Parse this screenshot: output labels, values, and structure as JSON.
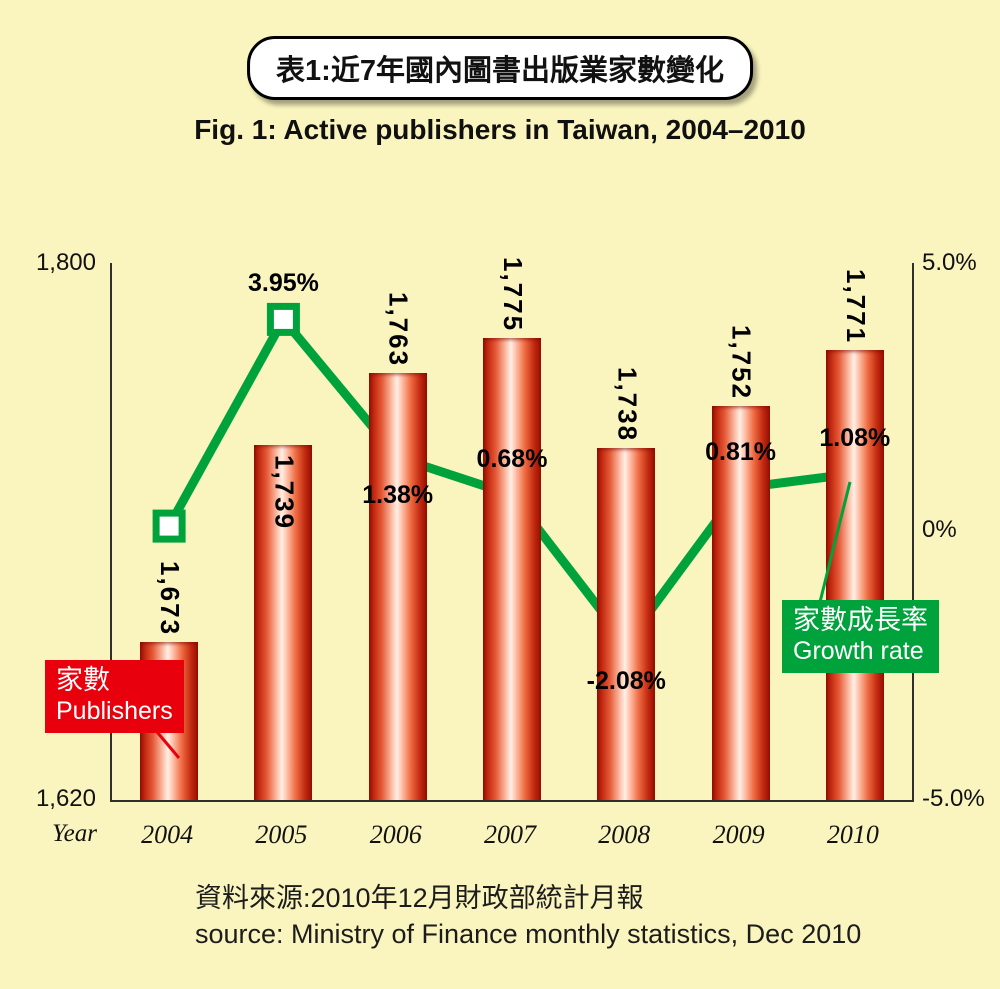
{
  "header": {
    "title_zh": "表1:近7年國內圖書出版業家數變化",
    "title_en": "Fig. 1: Active publishers in Taiwan, 2004–2010"
  },
  "chart_data": {
    "type": "bar+line",
    "categories": [
      "2004",
      "2005",
      "2006",
      "2007",
      "2008",
      "2009",
      "2010"
    ],
    "x_axis_label": "Year",
    "left_axis": {
      "min": 1620,
      "max": 1800,
      "label_top": "1,800",
      "label_bottom": "1,620"
    },
    "right_axis": {
      "min": -5,
      "max": 5,
      "label_top": "5.0%",
      "label_mid": "0%",
      "label_bottom": "-5.0%"
    },
    "series": [
      {
        "name": "家數 Publishers",
        "type": "bar",
        "color": "#C81A08",
        "values": [
          1673,
          1739,
          1763,
          1775,
          1738,
          1752,
          1771
        ],
        "labels": [
          "1,673",
          "1,739",
          "1,763",
          "1,775",
          "1,738",
          "1,752",
          "1,771"
        ],
        "label_inside": [
          false,
          true,
          false,
          false,
          false,
          false,
          false
        ]
      },
      {
        "name": "家數成長率 Growth rate",
        "type": "line",
        "color": "#00A23C",
        "values": [
          0.1,
          3.95,
          1.38,
          0.68,
          -2.08,
          0.81,
          1.08
        ],
        "labels": [
          "",
          "3.95%",
          "1.38%",
          "0.68%",
          "-2.08%",
          "0.81%",
          "1.08%"
        ],
        "label_position": [
          "none",
          "above",
          "below",
          "above",
          "below",
          "above",
          "above"
        ]
      }
    ],
    "grid": false,
    "legend_position": "in-plot callout boxes"
  },
  "legend": {
    "publishers": {
      "line1": "家數",
      "line2": "Publishers",
      "color": "#E8000D"
    },
    "growth": {
      "line1": "家數成長率",
      "line2": "Growth rate",
      "color": "#00A23C"
    }
  },
  "source": {
    "line1": "資料來源:2010年12月財政部統計月報",
    "line2": "source: Ministry of Finance monthly statistics, Dec 2010"
  },
  "colors": {
    "background": "#FAF5BE",
    "bar_red": "#C81A08",
    "line_green": "#00A23C",
    "legend_red": "#E8000D"
  }
}
